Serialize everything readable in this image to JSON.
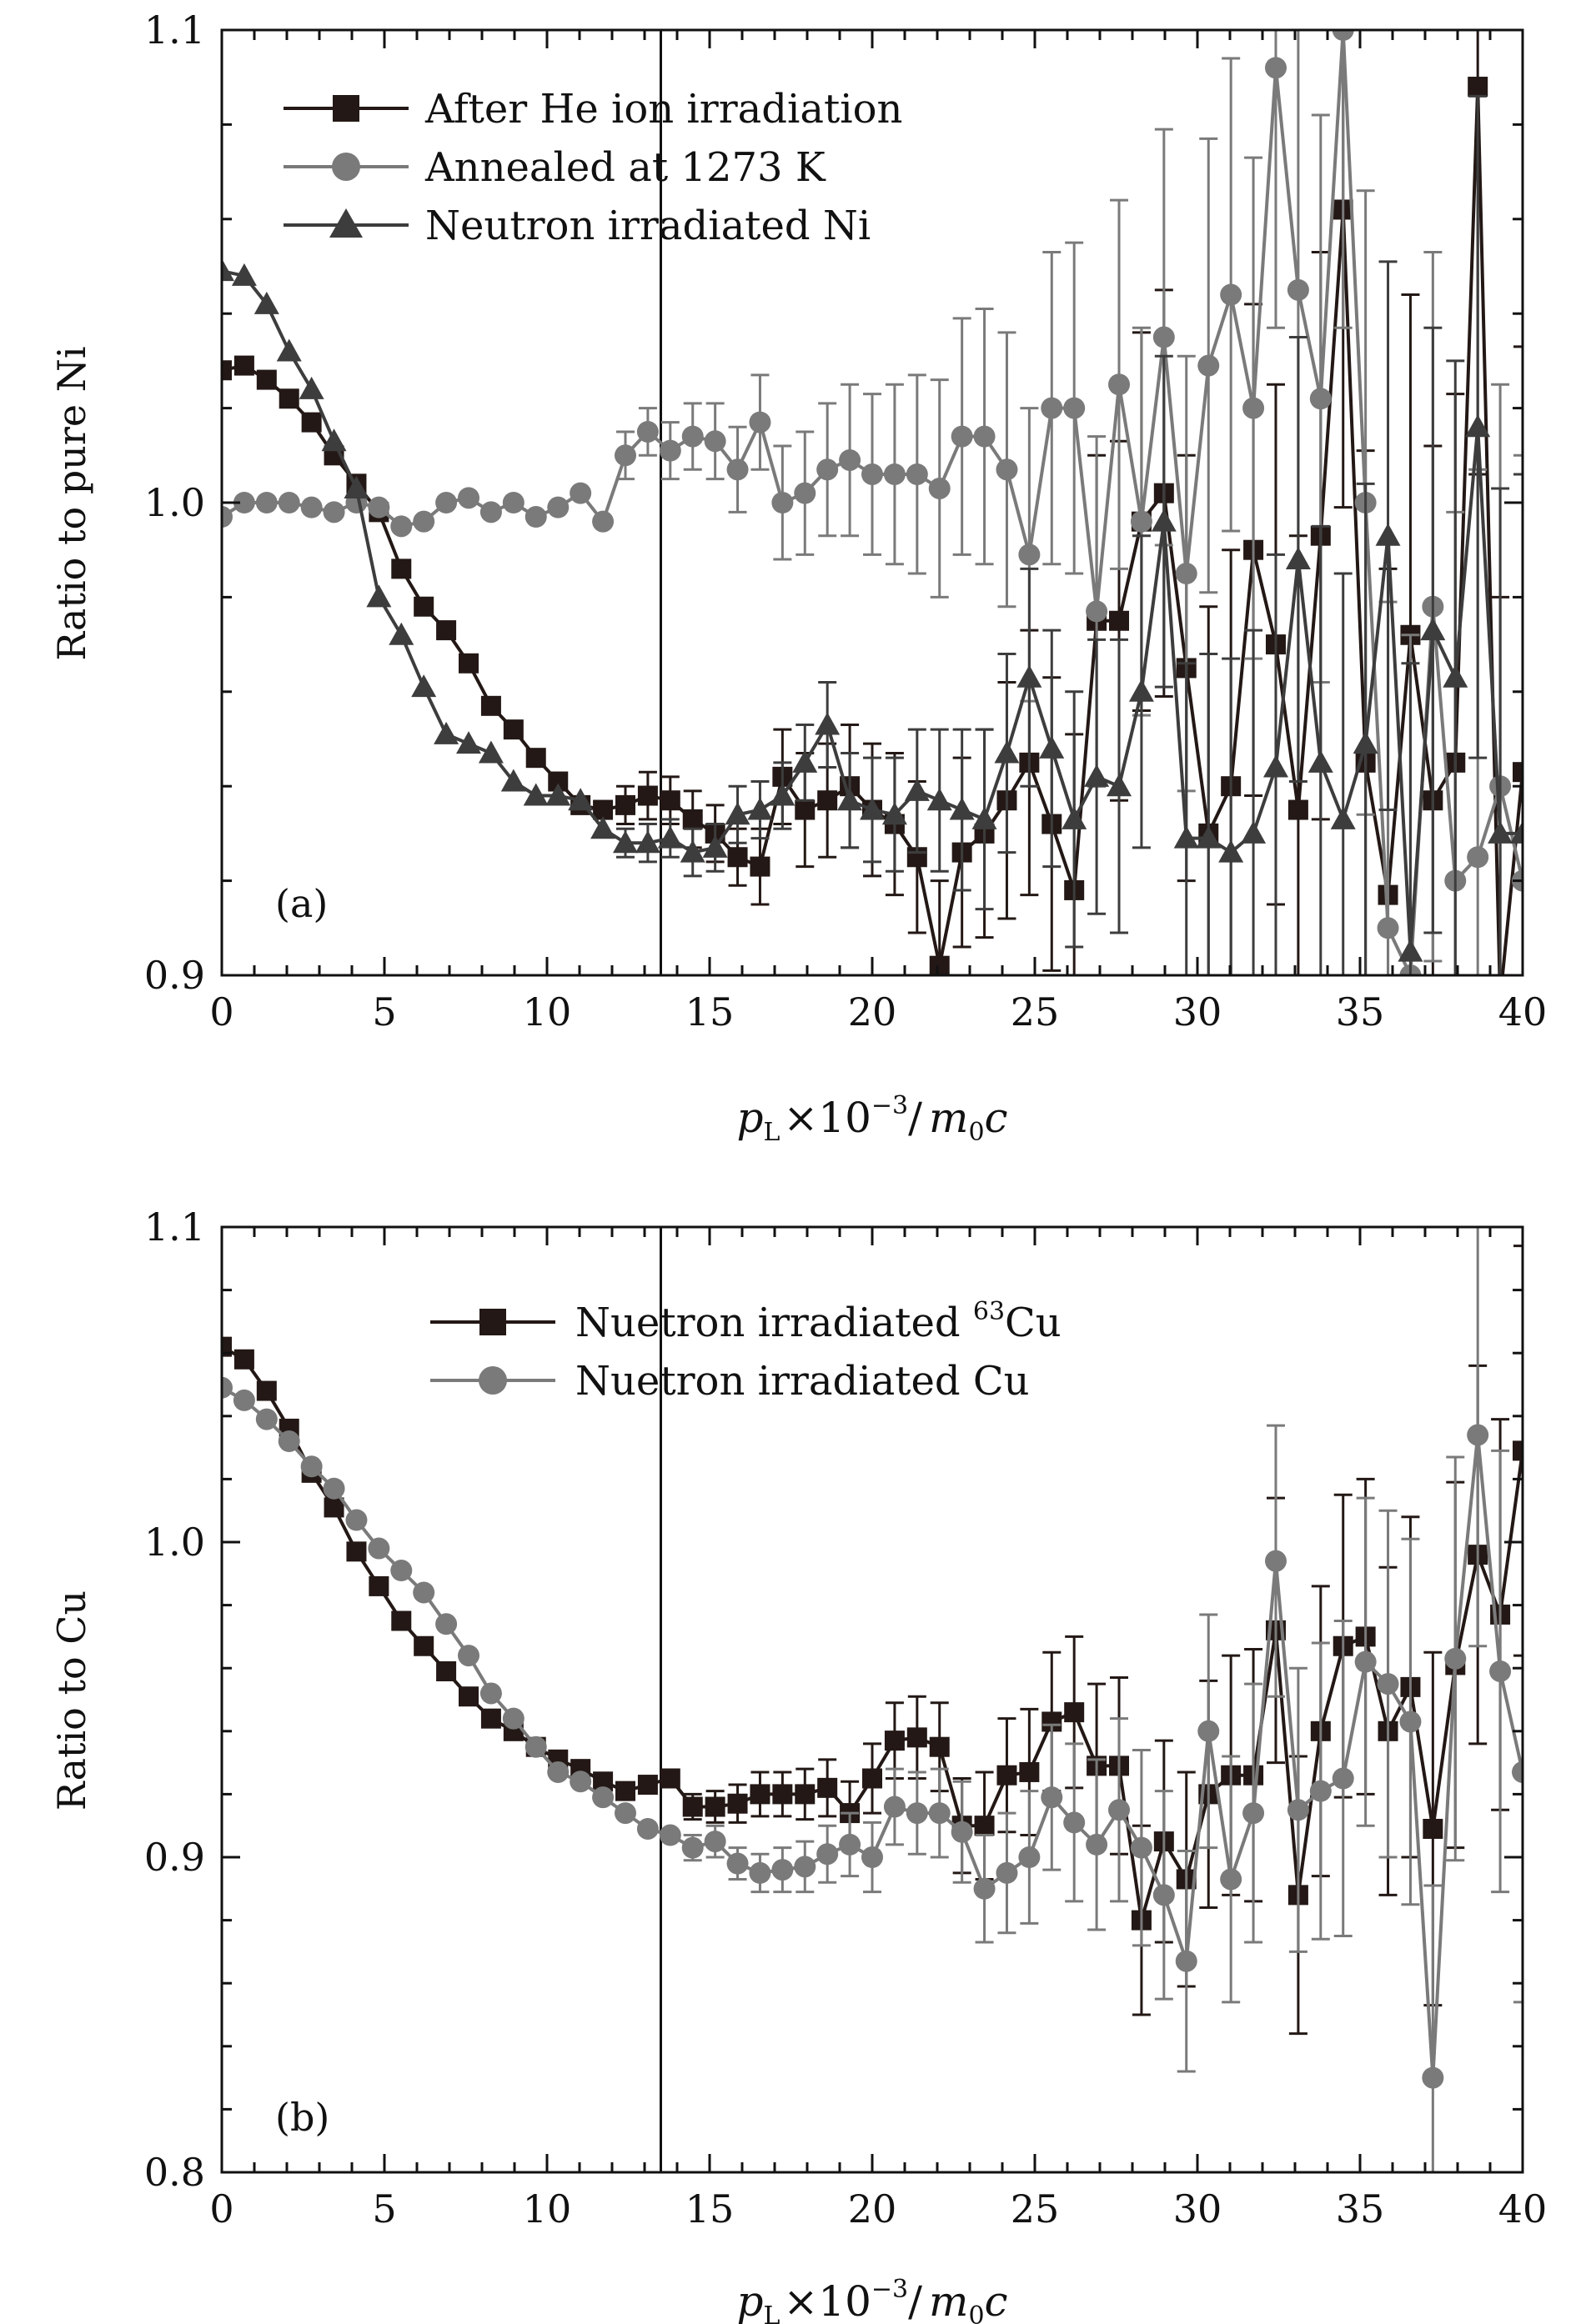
{
  "figure": {
    "axis_tick_labels": {
      "x": [
        "0",
        "5",
        "10",
        "15",
        "20",
        "25",
        "30",
        "35",
        "40"
      ]
    }
  },
  "chart_data": [
    {
      "type": "line",
      "panel_label": "(a)",
      "xlabel": "p_L × 10^-3 / m_0 c",
      "xlabel_parts": {
        "p": "p",
        "p_sub": "L",
        "times": "×10",
        "exp": "−3",
        "slash": "/",
        "m": "m",
        "m_sub": "0",
        "c": "c"
      },
      "ylabel": "Ratio to pure Ni",
      "xlim": [
        0,
        40
      ],
      "ylim": [
        0.9,
        1.1
      ],
      "xticks": [
        0,
        5,
        10,
        15,
        20,
        25,
        30,
        35,
        40
      ],
      "yticks": [
        0.9,
        1.0,
        1.1
      ],
      "ytick_labels": [
        "0.9",
        "1.0",
        "1.1"
      ],
      "vline_x": 13.5,
      "legend_position": "top-left",
      "series": [
        {
          "name": "After He ion irradiation",
          "marker": "square",
          "color": "#231815",
          "x": [
            0.0,
            0.69,
            1.38,
            2.07,
            2.76,
            3.45,
            4.14,
            4.83,
            5.52,
            6.21,
            6.9,
            7.59,
            8.28,
            8.97,
            9.66,
            10.34,
            11.03,
            11.72,
            12.41,
            13.1,
            13.79,
            14.48,
            15.17,
            15.86,
            16.55,
            17.24,
            17.93,
            18.62,
            19.31,
            20.0,
            20.69,
            21.38,
            22.07,
            22.76,
            23.45,
            24.14,
            24.83,
            25.52,
            26.21,
            26.9,
            27.59,
            28.28,
            28.97,
            29.66,
            30.34,
            31.03,
            31.72,
            32.41,
            33.1,
            33.79,
            34.48,
            35.17,
            35.86,
            36.55,
            37.24,
            37.93,
            38.62,
            39.31,
            40.0
          ],
          "y": [
            1.028,
            1.029,
            1.026,
            1.022,
            1.017,
            1.01,
            1.004,
            0.998,
            0.986,
            0.978,
            0.973,
            0.966,
            0.957,
            0.952,
            0.946,
            0.941,
            0.936,
            0.935,
            0.936,
            0.938,
            0.937,
            0.933,
            0.93,
            0.925,
            0.923,
            0.942,
            0.935,
            0.937,
            0.94,
            0.935,
            0.932,
            0.925,
            0.902,
            0.926,
            0.93,
            0.937,
            0.945,
            0.932,
            0.918,
            0.975,
            0.975,
            0.996,
            1.002,
            0.965,
            0.93,
            0.94,
            0.99,
            0.97,
            0.935,
            0.993,
            1.062,
            0.945,
            0.917,
            0.972,
            0.937,
            0.945,
            1.088,
            0.895,
            0.943
          ],
          "err": [
            0.0,
            0.0,
            0.0,
            0.0,
            0.0,
            0.0,
            0.0,
            0.0,
            0.0,
            0.0,
            0.0,
            0.0,
            0.0,
            0.0,
            0.0,
            0.0,
            0.0,
            0.0,
            0.004,
            0.005,
            0.005,
            0.006,
            0.006,
            0.006,
            0.008,
            0.01,
            0.012,
            0.012,
            0.013,
            0.014,
            0.015,
            0.016,
            0.018,
            0.02,
            0.022,
            0.025,
            0.028,
            0.031,
            0.033,
            0.035,
            0.038,
            0.04,
            0.043,
            0.045,
            0.048,
            0.05,
            0.052,
            0.055,
            0.058,
            0.06,
            0.063,
            0.066,
            0.069,
            0.072,
            0.075,
            0.078,
            0.082,
            0.085,
            0.09
          ]
        },
        {
          "name": "Annealed at 1273 K",
          "marker": "circle",
          "color": "#7a7a7a",
          "x": [
            0.0,
            0.69,
            1.38,
            2.07,
            2.76,
            3.45,
            4.14,
            4.83,
            5.52,
            6.21,
            6.9,
            7.59,
            8.28,
            8.97,
            9.66,
            10.34,
            11.03,
            11.72,
            12.41,
            13.1,
            13.79,
            14.48,
            15.17,
            15.86,
            16.55,
            17.24,
            17.93,
            18.62,
            19.31,
            20.0,
            20.69,
            21.38,
            22.07,
            22.76,
            23.45,
            24.14,
            24.83,
            25.52,
            26.21,
            26.9,
            27.59,
            28.28,
            28.97,
            29.66,
            30.34,
            31.03,
            31.72,
            32.41,
            33.1,
            33.79,
            34.48,
            35.17,
            35.86,
            36.55,
            37.24,
            37.93,
            38.62,
            39.31,
            40.0
          ],
          "y": [
            0.997,
            1.0,
            1.0,
            1.0,
            0.999,
            0.998,
            1.0,
            0.999,
            0.995,
            0.996,
            1.0,
            1.001,
            0.998,
            1.0,
            0.997,
            0.999,
            1.002,
            0.996,
            1.01,
            1.015,
            1.011,
            1.014,
            1.013,
            1.007,
            1.017,
            1.0,
            1.002,
            1.007,
            1.009,
            1.006,
            1.006,
            1.006,
            1.003,
            1.014,
            1.014,
            1.007,
            0.989,
            1.02,
            1.02,
            0.977,
            1.025,
            0.996,
            1.035,
            0.985,
            1.029,
            1.044,
            1.02,
            1.092,
            1.045,
            1.022,
            1.1,
            1.0,
            0.91,
            0.9,
            0.978,
            0.92,
            0.925,
            0.94,
            0.92
          ],
          "err": [
            0.0,
            0.0,
            0.0,
            0.0,
            0.0,
            0.0,
            0.0,
            0.0,
            0.0,
            0.0,
            0.0,
            0.0,
            0.0,
            0.0,
            0.0,
            0.0,
            0.0,
            0.0,
            0.005,
            0.005,
            0.006,
            0.007,
            0.008,
            0.009,
            0.01,
            0.012,
            0.013,
            0.014,
            0.016,
            0.017,
            0.019,
            0.021,
            0.023,
            0.025,
            0.027,
            0.029,
            0.031,
            0.033,
            0.035,
            0.037,
            0.039,
            0.041,
            0.044,
            0.046,
            0.048,
            0.05,
            0.053,
            0.055,
            0.058,
            0.06,
            0.063,
            0.066,
            0.069,
            0.072,
            0.075,
            0.078,
            0.082,
            0.085,
            0.09
          ]
        },
        {
          "name": "Neutron irradiated Ni",
          "marker": "triangle",
          "color": "#3d3d3d",
          "x": [
            0.0,
            0.69,
            1.38,
            2.07,
            2.76,
            3.45,
            4.14,
            4.83,
            5.52,
            6.21,
            6.9,
            7.59,
            8.28,
            8.97,
            9.66,
            10.34,
            11.03,
            11.72,
            12.41,
            13.1,
            13.79,
            14.48,
            15.17,
            15.86,
            16.55,
            17.24,
            17.93,
            18.62,
            19.31,
            20.0,
            20.69,
            21.38,
            22.07,
            22.76,
            23.45,
            24.14,
            24.83,
            25.52,
            26.21,
            26.9,
            27.59,
            28.28,
            28.97,
            29.66,
            30.34,
            31.03,
            31.72,
            32.41,
            33.1,
            33.79,
            34.48,
            35.17,
            35.86,
            36.55,
            37.24,
            37.93,
            38.62,
            39.31,
            40.0
          ],
          "y": [
            1.049,
            1.048,
            1.042,
            1.032,
            1.024,
            1.013,
            1.003,
            0.98,
            0.972,
            0.961,
            0.951,
            0.949,
            0.947,
            0.941,
            0.938,
            0.938,
            0.937,
            0.931,
            0.928,
            0.928,
            0.929,
            0.926,
            0.927,
            0.934,
            0.935,
            0.938,
            0.945,
            0.953,
            0.937,
            0.935,
            0.934,
            0.939,
            0.937,
            0.935,
            0.933,
            0.947,
            0.963,
            0.948,
            0.933,
            0.942,
            0.94,
            0.96,
            0.996,
            0.929,
            0.929,
            0.926,
            0.93,
            0.944,
            0.988,
            0.945,
            0.933,
            0.949,
            0.993,
            0.905,
            0.973,
            0.963,
            1.016,
            0.93,
            0.93
          ],
          "err": [
            0.0,
            0.0,
            0.0,
            0.0,
            0.0,
            0.0,
            0.0,
            0.0,
            0.0,
            0.0,
            0.0,
            0.0,
            0.0,
            0.0,
            0.0,
            0.0,
            0.0,
            0.0,
            0.003,
            0.004,
            0.004,
            0.005,
            0.005,
            0.006,
            0.006,
            0.007,
            0.008,
            0.009,
            0.01,
            0.011,
            0.012,
            0.013,
            0.015,
            0.017,
            0.019,
            0.021,
            0.023,
            0.025,
            0.027,
            0.029,
            0.031,
            0.033,
            0.035,
            0.037,
            0.039,
            0.041,
            0.043,
            0.045,
            0.047,
            0.05,
            0.052,
            0.055,
            0.058,
            0.061,
            0.064,
            0.067,
            0.07,
            0.073,
            0.076
          ]
        }
      ]
    },
    {
      "type": "line",
      "panel_label": "(b)",
      "xlabel": "p_L × 10^-3 / m_0 c",
      "xlabel_parts": {
        "p": "p",
        "p_sub": "L",
        "times": "×10",
        "exp": "−3",
        "slash": "/",
        "m": "m",
        "m_sub": "0",
        "c": "c"
      },
      "ylabel": "Ratio to Cu",
      "xlim": [
        0,
        40
      ],
      "ylim": [
        0.8,
        1.1
      ],
      "xticks": [
        0,
        5,
        10,
        15,
        20,
        25,
        30,
        35,
        40
      ],
      "yticks": [
        0.8,
        0.9,
        1.0,
        1.1
      ],
      "ytick_labels": [
        "0.8",
        "0.9",
        "1.0",
        "1.1"
      ],
      "vline_x": 13.5,
      "legend_position": "top-center",
      "series": [
        {
          "name": "Nuetron irradiated 63Cu",
          "name_parts": {
            "before": "Nuetron irradiated ",
            "sup": "63",
            "after": "Cu"
          },
          "marker": "square",
          "color": "#231815",
          "x": [
            0.0,
            0.69,
            1.38,
            2.07,
            2.76,
            3.45,
            4.14,
            4.83,
            5.52,
            6.21,
            6.9,
            7.59,
            8.28,
            8.97,
            9.66,
            10.34,
            11.03,
            11.72,
            12.41,
            13.1,
            13.79,
            14.48,
            15.17,
            15.86,
            16.55,
            17.24,
            17.93,
            18.62,
            19.31,
            20.0,
            20.69,
            21.38,
            22.07,
            22.76,
            23.45,
            24.14,
            24.83,
            25.52,
            26.21,
            26.9,
            27.59,
            28.28,
            28.97,
            29.66,
            30.34,
            31.03,
            31.72,
            32.41,
            33.1,
            33.79,
            34.48,
            35.17,
            35.86,
            36.55,
            37.24,
            37.93,
            38.62,
            39.31,
            40.0
          ],
          "y": [
            1.062,
            1.058,
            1.048,
            1.036,
            1.022,
            1.011,
            0.997,
            0.986,
            0.975,
            0.967,
            0.959,
            0.951,
            0.944,
            0.94,
            0.935,
            0.931,
            0.928,
            0.924,
            0.921,
            0.923,
            0.925,
            0.916,
            0.916,
            0.917,
            0.92,
            0.92,
            0.92,
            0.922,
            0.914,
            0.925,
            0.937,
            0.938,
            0.935,
            0.91,
            0.91,
            0.926,
            0.927,
            0.943,
            0.946,
            0.929,
            0.929,
            0.88,
            0.905,
            0.893,
            0.92,
            0.926,
            0.926,
            0.972,
            0.888,
            0.94,
            0.967,
            0.97,
            0.94,
            0.954,
            0.909,
            0.961,
            0.996,
            0.977,
            1.029
          ],
          "err": [
            0.0,
            0.0,
            0.0,
            0.0,
            0.0,
            0.0,
            0.0,
            0.0,
            0.0,
            0.0,
            0.0,
            0.0,
            0.0,
            0.0,
            0.0,
            0.0,
            0.0,
            0.0,
            0.0,
            0.0,
            0.0,
            0.004,
            0.005,
            0.006,
            0.007,
            0.007,
            0.008,
            0.009,
            0.01,
            0.011,
            0.012,
            0.013,
            0.014,
            0.015,
            0.017,
            0.018,
            0.02,
            0.022,
            0.024,
            0.026,
            0.028,
            0.03,
            0.032,
            0.034,
            0.036,
            0.038,
            0.04,
            0.042,
            0.044,
            0.046,
            0.048,
            0.05,
            0.052,
            0.054,
            0.056,
            0.058,
            0.06,
            0.062,
            0.065
          ]
        },
        {
          "name": "Nuetron irradiated Cu",
          "marker": "circle",
          "color": "#7a7a7a",
          "x": [
            0.0,
            0.69,
            1.38,
            2.07,
            2.76,
            3.45,
            4.14,
            4.83,
            5.52,
            6.21,
            6.9,
            7.59,
            8.28,
            8.97,
            9.66,
            10.34,
            11.03,
            11.72,
            12.41,
            13.1,
            13.79,
            14.48,
            15.17,
            15.86,
            16.55,
            17.24,
            17.93,
            18.62,
            19.31,
            20.0,
            20.69,
            21.38,
            22.07,
            22.76,
            23.45,
            24.14,
            24.83,
            25.52,
            26.21,
            26.9,
            27.59,
            28.28,
            28.97,
            29.66,
            30.34,
            31.03,
            31.72,
            32.41,
            33.1,
            33.79,
            34.48,
            35.17,
            35.86,
            36.55,
            37.24,
            37.93,
            38.62,
            39.31,
            40.0
          ],
          "y": [
            1.049,
            1.045,
            1.039,
            1.032,
            1.024,
            1.017,
            1.007,
            0.998,
            0.991,
            0.984,
            0.974,
            0.964,
            0.952,
            0.944,
            0.935,
            0.927,
            0.924,
            0.919,
            0.914,
            0.909,
            0.907,
            0.903,
            0.905,
            0.898,
            0.895,
            0.896,
            0.897,
            0.901,
            0.904,
            0.9,
            0.916,
            0.914,
            0.914,
            0.908,
            0.89,
            0.895,
            0.9,
            0.919,
            0.911,
            0.904,
            0.915,
            0.903,
            0.888,
            0.867,
            0.94,
            0.893,
            0.914,
            0.994,
            0.915,
            0.921,
            0.925,
            0.962,
            0.955,
            0.943,
            0.83,
            0.963,
            1.034,
            0.959,
            0.927
          ],
          "err": [
            0.0,
            0.0,
            0.0,
            0.0,
            0.0,
            0.0,
            0.0,
            0.0,
            0.0,
            0.0,
            0.0,
            0.0,
            0.0,
            0.0,
            0.0,
            0.0,
            0.0,
            0.0,
            0.0,
            0.0,
            0.0,
            0.004,
            0.005,
            0.005,
            0.006,
            0.007,
            0.008,
            0.009,
            0.01,
            0.011,
            0.012,
            0.013,
            0.014,
            0.016,
            0.017,
            0.019,
            0.021,
            0.023,
            0.025,
            0.027,
            0.029,
            0.031,
            0.033,
            0.035,
            0.037,
            0.039,
            0.041,
            0.043,
            0.045,
            0.047,
            0.05,
            0.052,
            0.055,
            0.058,
            0.061,
            0.064,
            0.067,
            0.07,
            0.073
          ]
        }
      ]
    }
  ]
}
